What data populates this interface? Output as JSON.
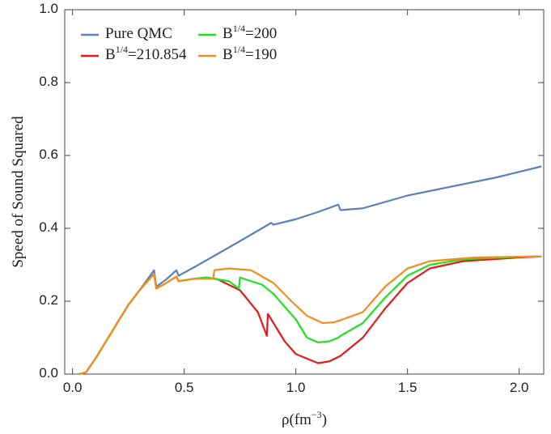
{
  "chart_data": {
    "type": "line",
    "xlabel": "ρ(fm^{−3})",
    "ylabel": "Speed of Sound Squared",
    "xlim": [
      -0.035,
      2.11
    ],
    "ylim": [
      0,
      1
    ],
    "xticks": [
      {
        "value": 0,
        "label": "0.0"
      },
      0.5,
      {
        "value": 1,
        "label": "1.0"
      },
      1.5,
      {
        "value": 2,
        "label": "2.0"
      }
    ],
    "yticks": [
      {
        "value": 0,
        "label": "0.0"
      },
      0.2,
      0.4,
      0.6,
      0.8,
      {
        "value": 1,
        "label": "1.0"
      }
    ],
    "legend": "upper left",
    "series": [
      {
        "name": "Pure QMC",
        "color": "#5e81b5",
        "x": [
          0.03,
          0.06,
          0.1,
          0.15,
          0.2,
          0.25,
          0.3,
          0.365,
          0.375,
          0.42,
          0.465,
          0.475,
          0.55,
          0.65,
          0.75,
          0.89,
          0.9,
          1.0,
          1.1,
          1.19,
          1.2,
          1.3,
          1.5,
          1.7,
          1.9,
          2.1
        ],
        "values": [
          0,
          0.005,
          0.04,
          0.09,
          0.14,
          0.19,
          0.23,
          0.285,
          0.24,
          0.26,
          0.285,
          0.27,
          0.295,
          0.33,
          0.365,
          0.415,
          0.41,
          0.425,
          0.445,
          0.465,
          0.45,
          0.455,
          0.49,
          0.515,
          0.54,
          0.57
        ]
      },
      {
        "name": "B^{1/4}=210.854",
        "color": "#e41a1c",
        "x": [
          0.03,
          0.06,
          0.1,
          0.15,
          0.2,
          0.25,
          0.3,
          0.365,
          0.375,
          0.42,
          0.465,
          0.475,
          0.55,
          0.6,
          0.65,
          0.75,
          0.83,
          0.87,
          0.875,
          0.9,
          0.95,
          1.0,
          1.1,
          1.15,
          1.2,
          1.21,
          1.3,
          1.4,
          1.5,
          1.6,
          1.75,
          2.0,
          2.1
        ],
        "values": [
          0,
          0.005,
          0.04,
          0.09,
          0.14,
          0.19,
          0.23,
          0.275,
          0.235,
          0.25,
          0.268,
          0.255,
          0.262,
          0.265,
          0.26,
          0.23,
          0.17,
          0.105,
          0.165,
          0.14,
          0.09,
          0.055,
          0.03,
          0.035,
          0.05,
          0.055,
          0.1,
          0.18,
          0.25,
          0.29,
          0.31,
          0.32,
          0.323
        ]
      },
      {
        "name": "B^{1/4}=200",
        "color": "#22e022",
        "x": [
          0.03,
          0.06,
          0.1,
          0.15,
          0.2,
          0.25,
          0.3,
          0.365,
          0.375,
          0.42,
          0.465,
          0.475,
          0.55,
          0.6,
          0.7,
          0.745,
          0.75,
          0.85,
          0.9,
          1.0,
          1.05,
          1.1,
          1.15,
          1.19,
          1.2,
          1.3,
          1.4,
          1.5,
          1.6,
          1.75,
          2.0,
          2.1
        ],
        "values": [
          0,
          0.005,
          0.04,
          0.09,
          0.14,
          0.19,
          0.23,
          0.275,
          0.235,
          0.25,
          0.268,
          0.255,
          0.262,
          0.265,
          0.255,
          0.235,
          0.265,
          0.245,
          0.22,
          0.15,
          0.1,
          0.087,
          0.09,
          0.1,
          0.105,
          0.14,
          0.21,
          0.27,
          0.3,
          0.315,
          0.322,
          0.323
        ]
      },
      {
        "name": "B^{1/4}=190",
        "color": "#f28e1e",
        "x": [
          0.03,
          0.06,
          0.1,
          0.15,
          0.2,
          0.25,
          0.3,
          0.365,
          0.375,
          0.42,
          0.465,
          0.475,
          0.55,
          0.63,
          0.635,
          0.7,
          0.8,
          0.9,
          0.98,
          1.05,
          1.12,
          1.17,
          1.2,
          1.3,
          1.4,
          1.5,
          1.6,
          1.8,
          2.1
        ],
        "values": [
          0,
          0.005,
          0.04,
          0.09,
          0.14,
          0.19,
          0.23,
          0.275,
          0.235,
          0.25,
          0.268,
          0.255,
          0.262,
          0.262,
          0.285,
          0.29,
          0.285,
          0.25,
          0.2,
          0.16,
          0.14,
          0.142,
          0.148,
          0.17,
          0.24,
          0.29,
          0.31,
          0.32,
          0.323
        ]
      }
    ]
  }
}
